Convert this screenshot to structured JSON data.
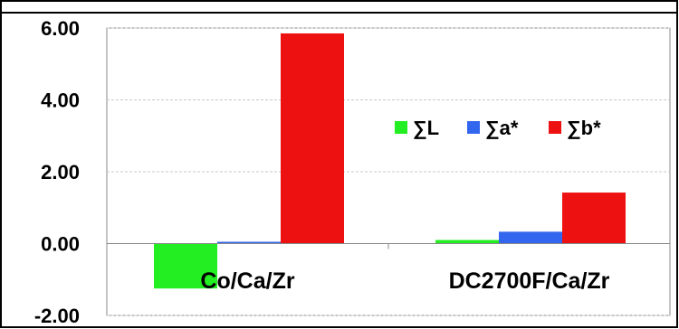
{
  "chart_data": {
    "type": "bar",
    "title": "",
    "xlabel": "",
    "ylabel": "",
    "categories": [
      "Co/Ca/Zr",
      "DC2700F/Ca/Zr"
    ],
    "series": [
      {
        "name": "∑L",
        "color": "#22ee22",
        "values": [
          -1.25,
          0.1
        ]
      },
      {
        "name": "∑a*",
        "color": "#3366ee",
        "values": [
          0.05,
          0.33
        ]
      },
      {
        "name": "∑b*",
        "color": "#ee1111",
        "values": [
          5.85,
          1.42
        ]
      }
    ],
    "ylim": [
      -2.0,
      6.0
    ],
    "yticks": [
      "6.00",
      "4.00",
      "2.00",
      "0.00",
      "-2.00"
    ],
    "ytick_values": [
      6,
      4,
      2,
      0,
      -2
    ],
    "grid": true,
    "legend_position": "upper-right inside plot"
  }
}
